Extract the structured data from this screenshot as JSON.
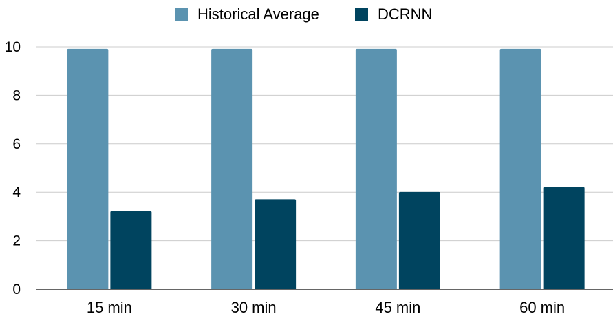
{
  "chart_data": {
    "type": "bar",
    "categories": [
      "15 min",
      "30 min",
      "45 min",
      "60 min"
    ],
    "series": [
      {
        "name": "Historical Average",
        "color": "#5b93b0",
        "values": [
          9.92,
          9.92,
          9.92,
          9.92
        ]
      },
      {
        "name": "DCRNN",
        "color": "#00445f",
        "values": [
          3.22,
          3.71,
          4.01,
          4.22
        ]
      }
    ],
    "yticks": [
      "0",
      "2",
      "4",
      "6",
      "8",
      "10"
    ],
    "ylim": [
      0,
      10
    ],
    "grid": true,
    "legend": "top-center",
    "title": "",
    "xlabel": "",
    "ylabel": ""
  }
}
